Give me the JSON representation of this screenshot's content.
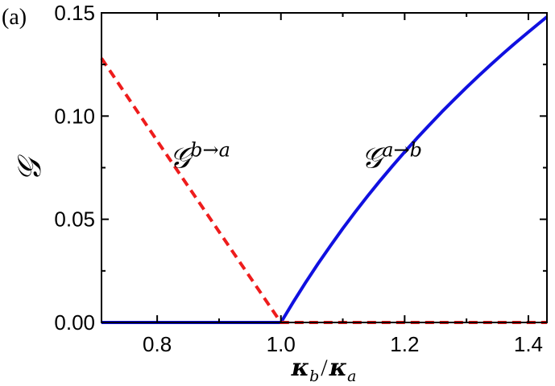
{
  "panel_label": "(a)",
  "chart_data": {
    "type": "line",
    "xlabel": {
      "symbol": "κ",
      "num_sub": "b",
      "sep": "/",
      "den_sub": "a"
    },
    "ylabel": "𝒢",
    "xlim": [
      0.71,
      1.43
    ],
    "ylim": [
      0.0,
      0.15
    ],
    "xticks": [
      0.8,
      1.0,
      1.2,
      1.4
    ],
    "yticks": [
      0.0,
      0.05,
      0.1,
      0.15
    ],
    "xtick_labels": [
      "0.8",
      "1.0",
      "1.2",
      "1.4"
    ],
    "ytick_labels": [
      "0.00",
      "0.05",
      "0.10",
      "0.15"
    ],
    "grid": false,
    "series": [
      {
        "name": "𝒢^{a→b}",
        "color": "#1010e0",
        "style": "solid",
        "x": [
          0.71,
          0.75,
          0.8,
          0.85,
          0.9,
          0.95,
          1.0,
          1.02,
          1.04,
          1.06,
          1.08,
          1.1,
          1.12,
          1.14,
          1.16,
          1.18,
          1.2,
          1.22,
          1.24,
          1.26,
          1.28,
          1.3,
          1.32,
          1.34,
          1.36,
          1.38,
          1.4,
          1.43
        ],
        "y": [
          0.0,
          0.0,
          0.0,
          0.0,
          0.0,
          0.0,
          0.0,
          0.0099,
          0.0194,
          0.0285,
          0.0371,
          0.0455,
          0.0535,
          0.0612,
          0.0686,
          0.0757,
          0.0826,
          0.0893,
          0.0957,
          0.102,
          0.108,
          0.1139,
          0.1196,
          0.1251,
          0.1305,
          0.1357,
          0.1407,
          0.1481
        ]
      },
      {
        "name": "𝒢^{b→a}",
        "color": "#ee1c1c",
        "style": "dashed",
        "x": [
          0.71,
          0.8,
          0.9,
          1.0,
          1.1,
          1.2,
          1.3,
          1.43
        ],
        "y": [
          0.128,
          0.088,
          0.044,
          0.0,
          0.0,
          0.0,
          0.0,
          0.0
        ]
      }
    ],
    "annotations": [
      {
        "base": "𝒢",
        "sup": "b→a",
        "x": 0.82,
        "y": 0.075
      },
      {
        "base": "𝒢",
        "sup": "a→b",
        "x": 1.13,
        "y": 0.075
      }
    ]
  }
}
